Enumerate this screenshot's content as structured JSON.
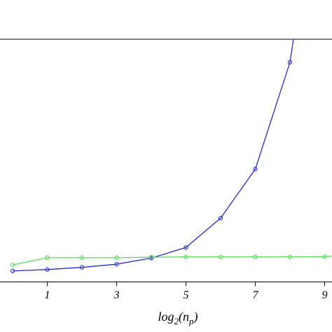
{
  "chart_data": {
    "type": "line",
    "title": "",
    "xlabel": {
      "base": "log",
      "sub1": "2",
      "mid": "(n",
      "sub2": "p",
      "end": ")"
    },
    "ylabel": "",
    "xlim": [
      -1,
      9.2
    ],
    "ylim": [
      0,
      100
    ],
    "x_ticks": [
      1,
      3,
      5,
      7,
      9
    ],
    "x_tick_labels": [
      "1",
      "3",
      "5",
      "7",
      "9"
    ],
    "grid": false,
    "series": [
      {
        "color": "#2a2ad4",
        "marker": "circle",
        "x": [
          0,
          1,
          2,
          3,
          4,
          5,
          6,
          7,
          8,
          8.1
        ],
        "y": [
          4.5,
          5.1,
          6.0,
          7.3,
          9.8,
          14.2,
          26.3,
          46.5,
          90.5,
          100
        ]
      },
      {
        "color": "#55dd55",
        "marker": "circle",
        "x": [
          0,
          1,
          2,
          3,
          4,
          5,
          6,
          7,
          8,
          9,
          9.2
        ],
        "y": [
          7.0,
          10.0,
          10.0,
          10.0,
          10.2,
          10.3,
          10.3,
          10.3,
          10.3,
          10.4,
          10.6
        ]
      }
    ],
    "colors": {
      "axis": "#000000",
      "background": "#ffffff"
    }
  }
}
